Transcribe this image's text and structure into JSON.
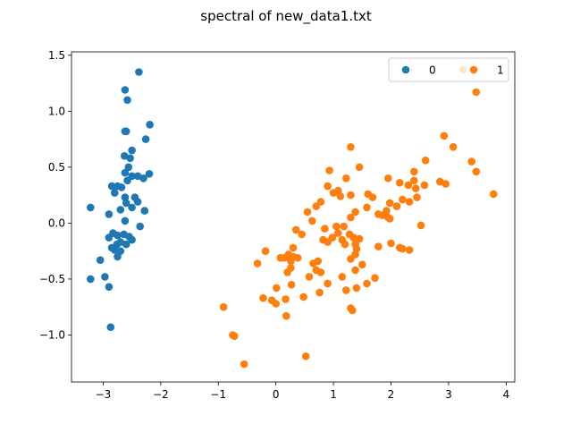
{
  "chart_data": {
    "type": "scatter",
    "title": "spectral of new_data1.txt",
    "xlabel": "",
    "ylabel": "",
    "xlim": [
      -3.55,
      4.15
    ],
    "ylim": [
      -1.42,
      1.53
    ],
    "xticks": [
      -3,
      -2,
      -1,
      0,
      1,
      2,
      3,
      4
    ],
    "xtick_labels": [
      "−3",
      "−2",
      "−1",
      "0",
      "1",
      "2",
      "3",
      "4"
    ],
    "yticks": [
      -1.0,
      -0.5,
      0.0,
      0.5,
      1.0,
      1.5
    ],
    "ytick_labels": [
      "−1.0",
      "−0.5",
      "0.0",
      "0.5",
      "1.0",
      "1.5"
    ],
    "grid": false,
    "legend_position": "top-right",
    "series": [
      {
        "name": "0",
        "color": "#1f77b4",
        "points": [
          [
            -2.38,
            1.35
          ],
          [
            -2.62,
            1.19
          ],
          [
            -2.58,
            1.1
          ],
          [
            -2.26,
            0.75
          ],
          [
            -2.19,
            0.88
          ],
          [
            -2.6,
            0.82
          ],
          [
            -2.62,
            0.82
          ],
          [
            -2.5,
            0.65
          ],
          [
            -2.63,
            0.6
          ],
          [
            -2.53,
            0.58
          ],
          [
            -2.56,
            0.5
          ],
          [
            -2.62,
            0.45
          ],
          [
            -2.5,
            0.42
          ],
          [
            -2.4,
            0.42
          ],
          [
            -2.3,
            0.4
          ],
          [
            -2.2,
            0.44
          ],
          [
            -2.85,
            0.33
          ],
          [
            -2.75,
            0.33
          ],
          [
            -2.68,
            0.32
          ],
          [
            -2.58,
            0.38
          ],
          [
            -2.8,
            0.27
          ],
          [
            -2.62,
            0.23
          ],
          [
            -2.45,
            0.23
          ],
          [
            -2.7,
            0.12
          ],
          [
            -2.5,
            0.14
          ],
          [
            -2.4,
            0.19
          ],
          [
            -2.28,
            0.11
          ],
          [
            -2.6,
            0.18
          ],
          [
            -2.9,
            0.08
          ],
          [
            -2.62,
            0.02
          ],
          [
            -3.22,
            0.14
          ],
          [
            -2.36,
            -0.03
          ],
          [
            -2.83,
            -0.09
          ],
          [
            -2.75,
            -0.11
          ],
          [
            -2.9,
            -0.13
          ],
          [
            -2.64,
            -0.1
          ],
          [
            -2.55,
            -0.12
          ],
          [
            -2.7,
            -0.17
          ],
          [
            -2.76,
            -0.19
          ],
          [
            -2.6,
            -0.19
          ],
          [
            -2.5,
            -0.15
          ],
          [
            -2.85,
            -0.22
          ],
          [
            -2.8,
            -0.24
          ],
          [
            -2.7,
            -0.25
          ],
          [
            -2.75,
            -0.3
          ],
          [
            -3.05,
            -0.33
          ],
          [
            -3.22,
            -0.5
          ],
          [
            -2.97,
            -0.48
          ],
          [
            -2.9,
            -0.57
          ],
          [
            -2.87,
            -0.93
          ]
        ]
      },
      {
        "name": "1",
        "color": "#ff7f0e",
        "points": [
          [
            3.25,
            1.37
          ],
          [
            3.48,
            1.17
          ],
          [
            2.92,
            0.78
          ],
          [
            3.08,
            0.68
          ],
          [
            2.6,
            0.56
          ],
          [
            3.4,
            0.55
          ],
          [
            3.48,
            0.46
          ],
          [
            2.85,
            0.37
          ],
          [
            2.95,
            0.35
          ],
          [
            3.78,
            0.26
          ],
          [
            2.4,
            0.46
          ],
          [
            2.4,
            0.38
          ],
          [
            2.3,
            0.34
          ],
          [
            2.43,
            0.31
          ],
          [
            2.58,
            0.34
          ],
          [
            2.15,
            0.36
          ],
          [
            1.95,
            0.4
          ],
          [
            2.2,
            0.21
          ],
          [
            2.45,
            0.23
          ],
          [
            2.32,
            0.19
          ],
          [
            2.1,
            0.15
          ],
          [
            1.98,
            0.18
          ],
          [
            1.92,
            0.11
          ],
          [
            1.85,
            0.07
          ],
          [
            1.95,
            0.05
          ],
          [
            1.98,
            0.04
          ],
          [
            1.3,
            0.68
          ],
          [
            1.45,
            0.5
          ],
          [
            1.22,
            0.4
          ],
          [
            1.6,
            0.26
          ],
          [
            1.68,
            0.23
          ],
          [
            1.3,
            0.25
          ],
          [
            0.93,
            0.47
          ],
          [
            0.9,
            0.33
          ],
          [
            1.0,
            0.27
          ],
          [
            1.08,
            0.29
          ],
          [
            0.78,
            0.19
          ],
          [
            0.7,
            0.15
          ],
          [
            1.12,
            0.24
          ],
          [
            0.55,
            0.1
          ],
          [
            0.63,
            0.02
          ],
          [
            0.85,
            -0.05
          ],
          [
            1.05,
            -0.03
          ],
          [
            1.18,
            -0.03
          ],
          [
            1.38,
            0.1
          ],
          [
            1.3,
            0.05
          ],
          [
            1.58,
            0.14
          ],
          [
            1.78,
            0.08
          ],
          [
            2.0,
            -0.18
          ],
          [
            2.15,
            -0.22
          ],
          [
            2.2,
            -0.23
          ],
          [
            2.32,
            -0.24
          ],
          [
            2.52,
            -0.02
          ],
          [
            1.78,
            -0.21
          ],
          [
            0.98,
            -0.13
          ],
          [
            0.9,
            -0.17
          ],
          [
            0.82,
            -0.15
          ],
          [
            1.15,
            -0.15
          ],
          [
            1.2,
            -0.19
          ],
          [
            1.08,
            -0.09
          ],
          [
            1.28,
            -0.1
          ],
          [
            1.35,
            -0.13
          ],
          [
            1.45,
            -0.14
          ],
          [
            1.38,
            -0.19
          ],
          [
            1.4,
            -0.23
          ],
          [
            1.3,
            -0.32
          ],
          [
            1.38,
            -0.28
          ],
          [
            1.5,
            -0.37
          ],
          [
            1.38,
            -0.42
          ],
          [
            1.58,
            -0.54
          ],
          [
            1.72,
            -0.49
          ],
          [
            1.15,
            -0.48
          ],
          [
            1.22,
            -0.6
          ],
          [
            1.4,
            -0.58
          ],
          [
            1.3,
            -0.76
          ],
          [
            1.33,
            -0.78
          ],
          [
            0.35,
            -0.06
          ],
          [
            0.45,
            -0.1
          ],
          [
            0.3,
            -0.22
          ],
          [
            0.22,
            -0.28
          ],
          [
            0.15,
            -0.31
          ],
          [
            0.26,
            -0.34
          ],
          [
            0.3,
            -0.3
          ],
          [
            0.38,
            -0.31
          ],
          [
            0.26,
            -0.4
          ],
          [
            0.2,
            -0.44
          ],
          [
            0.08,
            -0.31
          ],
          [
            -0.18,
            -0.25
          ],
          [
            -0.32,
            -0.36
          ],
          [
            0.73,
            -0.34
          ],
          [
            0.78,
            -0.44
          ],
          [
            0.65,
            -0.36
          ],
          [
            0.7,
            -0.42
          ],
          [
            0.9,
            -0.54
          ],
          [
            0.58,
            -0.48
          ],
          [
            0.27,
            -0.55
          ],
          [
            0.01,
            -0.58
          ],
          [
            0.48,
            -0.66
          ],
          [
            0.76,
            -0.62
          ],
          [
            0.17,
            -0.68
          ],
          [
            0.0,
            -0.72
          ],
          [
            -0.22,
            -0.67
          ],
          [
            -0.07,
            -0.69
          ],
          [
            0.18,
            -0.83
          ],
          [
            -0.91,
            -0.75
          ],
          [
            -0.75,
            -1.0
          ],
          [
            -0.72,
            -1.01
          ],
          [
            -0.55,
            -1.26
          ],
          [
            0.52,
            -1.19
          ]
        ]
      }
    ]
  }
}
